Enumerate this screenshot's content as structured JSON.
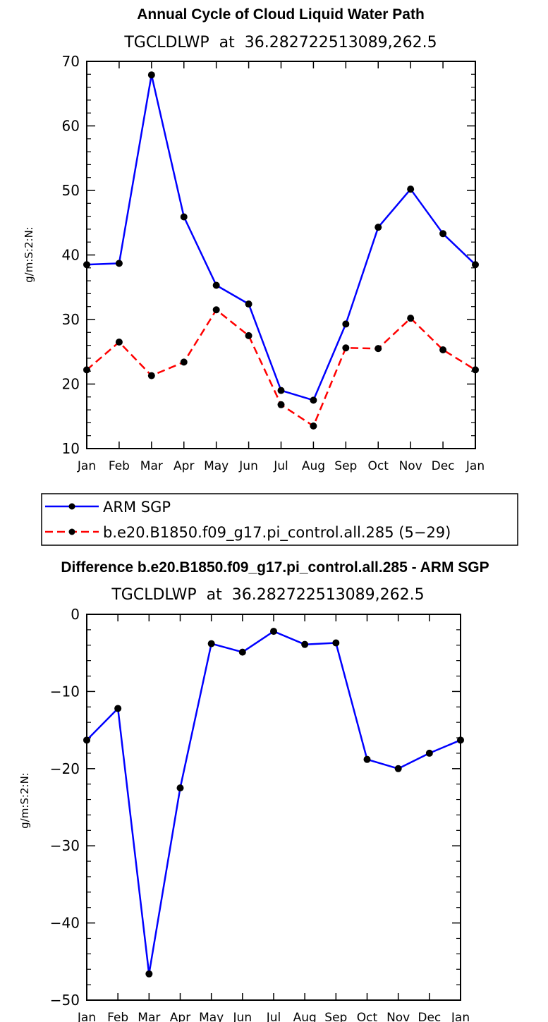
{
  "chart_data": [
    {
      "type": "line",
      "title": "Annual Cycle of Cloud Liquid Water Path",
      "subtitle": "TGCLDLWP  at  36.282722513089,262.5",
      "xlabel": "",
      "ylabel": "g/m:S:2:N:",
      "categories": [
        "Jan",
        "Feb",
        "Mar",
        "Apr",
        "May",
        "Jun",
        "Jul",
        "Aug",
        "Sep",
        "Oct",
        "Nov",
        "Dec",
        "Jan"
      ],
      "ylim": [
        10,
        70
      ],
      "yticks": [
        10,
        20,
        30,
        40,
        50,
        60,
        70
      ],
      "grid": false,
      "legend_position": "below",
      "series": [
        {
          "name": "ARM SGP",
          "color": "#0000ff",
          "dash": "solid",
          "values": [
            38.5,
            38.7,
            67.9,
            45.9,
            35.3,
            32.4,
            19.0,
            17.5,
            29.3,
            44.3,
            50.2,
            43.3,
            38.5
          ]
        },
        {
          "name": "b.e20.B1850.f09_g17.pi_control.all.285 (5−29)",
          "color": "#ff0000",
          "dash": "dashed",
          "values": [
            22.2,
            26.5,
            21.3,
            23.4,
            31.5,
            27.5,
            16.8,
            13.5,
            25.6,
            25.5,
            30.2,
            25.3,
            22.2
          ]
        }
      ]
    },
    {
      "type": "line",
      "title": "Difference b.e20.B1850.f09_g17.pi_control.all.285 - ARM SGP",
      "subtitle": "TGCLDLWP  at  36.282722513089,262.5",
      "xlabel": "",
      "ylabel": "g/m:S:2:N:",
      "categories": [
        "Jan",
        "Feb",
        "Mar",
        "Apr",
        "May",
        "Jun",
        "Jul",
        "Aug",
        "Sep",
        "Oct",
        "Nov",
        "Dec",
        "Jan"
      ],
      "ylim": [
        -50,
        0
      ],
      "yticks": [
        -50,
        -40,
        -30,
        -20,
        -10,
        0
      ],
      "ytick_labels": [
        "−50",
        "−40",
        "−30",
        "−20",
        "−10",
        "0"
      ],
      "grid": false,
      "series": [
        {
          "color": "#0000ff",
          "dash": "solid",
          "values": [
            -16.3,
            -12.2,
            -46.6,
            -22.5,
            -3.8,
            -4.9,
            -2.2,
            -3.9,
            -3.7,
            -18.8,
            -20.0,
            -18.0,
            -16.3
          ]
        }
      ]
    }
  ]
}
